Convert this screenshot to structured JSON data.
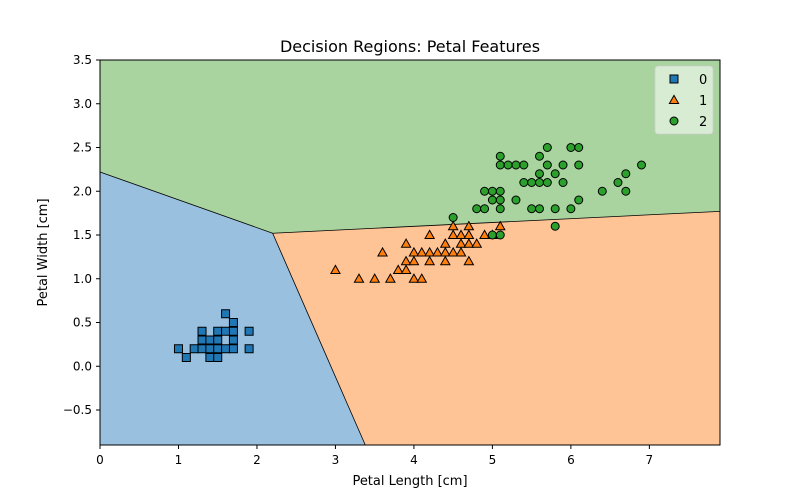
{
  "chart_data": {
    "type": "scatter",
    "title": "Decision Regions: Petal Features",
    "xlabel": "Petal Length [cm]",
    "ylabel": "Petal Width [cm]",
    "xlim": [
      0,
      7.9
    ],
    "ylim": [
      -0.9,
      3.5
    ],
    "xticks": [
      0,
      1,
      2,
      3,
      4,
      5,
      6,
      7
    ],
    "yticks": [
      -0.5,
      0.0,
      0.5,
      1.0,
      1.5,
      2.0,
      2.5,
      3.0,
      3.5
    ],
    "xtick_labels": [
      "0",
      "1",
      "2",
      "3",
      "4",
      "5",
      "6",
      "7"
    ],
    "ytick_labels": [
      "−0.5",
      "0.0",
      "0.5",
      "1.0",
      "1.5",
      "2.0",
      "2.5",
      "3.0",
      "3.5"
    ],
    "grid": false,
    "legend_position": "top-right",
    "regions": [
      {
        "class": "0",
        "color": "#99c0df",
        "polygon": [
          [
            0,
            2.22
          ],
          [
            2.2,
            1.52
          ],
          [
            3.38,
            -0.9
          ],
          [
            0,
            -0.9
          ]
        ]
      },
      {
        "class": "1",
        "color": "#ffc495",
        "polygon": [
          [
            2.2,
            1.52
          ],
          [
            7.9,
            1.77
          ],
          [
            7.9,
            -0.9
          ],
          [
            3.38,
            -0.9
          ]
        ]
      },
      {
        "class": "2",
        "color": "#a9d4a0",
        "polygon": [
          [
            0,
            3.5
          ],
          [
            7.9,
            3.5
          ],
          [
            7.9,
            1.77
          ],
          [
            2.2,
            1.52
          ],
          [
            0,
            2.22
          ]
        ]
      }
    ],
    "boundaries": [
      [
        [
          0,
          2.22
        ],
        [
          2.2,
          1.52
        ]
      ],
      [
        [
          2.2,
          1.52
        ],
        [
          3.38,
          -0.9
        ]
      ],
      [
        [
          2.2,
          1.52
        ],
        [
          7.9,
          1.77
        ]
      ]
    ],
    "series": [
      {
        "name": "0",
        "marker": "square",
        "color": "#1f77b4",
        "points": [
          [
            1.0,
            0.2
          ],
          [
            1.1,
            0.1
          ],
          [
            1.2,
            0.2
          ],
          [
            1.3,
            0.2
          ],
          [
            1.3,
            0.3
          ],
          [
            1.3,
            0.4
          ],
          [
            1.4,
            0.1
          ],
          [
            1.4,
            0.2
          ],
          [
            1.4,
            0.3
          ],
          [
            1.5,
            0.1
          ],
          [
            1.5,
            0.2
          ],
          [
            1.5,
            0.3
          ],
          [
            1.5,
            0.4
          ],
          [
            1.6,
            0.2
          ],
          [
            1.6,
            0.4
          ],
          [
            1.6,
            0.6
          ],
          [
            1.7,
            0.2
          ],
          [
            1.7,
            0.3
          ],
          [
            1.7,
            0.4
          ],
          [
            1.7,
            0.5
          ],
          [
            1.9,
            0.2
          ],
          [
            1.9,
            0.4
          ]
        ]
      },
      {
        "name": "1",
        "marker": "triangle",
        "color": "#ff7f0e",
        "points": [
          [
            3.0,
            1.1
          ],
          [
            3.3,
            1.0
          ],
          [
            3.5,
            1.0
          ],
          [
            3.6,
            1.3
          ],
          [
            3.7,
            1.0
          ],
          [
            3.8,
            1.1
          ],
          [
            3.9,
            1.1
          ],
          [
            3.9,
            1.2
          ],
          [
            3.9,
            1.4
          ],
          [
            4.0,
            1.0
          ],
          [
            4.0,
            1.2
          ],
          [
            4.0,
            1.3
          ],
          [
            4.1,
            1.0
          ],
          [
            4.1,
            1.3
          ],
          [
            4.2,
            1.2
          ],
          [
            4.2,
            1.3
          ],
          [
            4.2,
            1.5
          ],
          [
            4.3,
            1.3
          ],
          [
            4.4,
            1.2
          ],
          [
            4.4,
            1.3
          ],
          [
            4.4,
            1.4
          ],
          [
            4.5,
            1.3
          ],
          [
            4.5,
            1.5
          ],
          [
            4.5,
            1.6
          ],
          [
            4.6,
            1.3
          ],
          [
            4.6,
            1.4
          ],
          [
            4.6,
            1.5
          ],
          [
            4.7,
            1.2
          ],
          [
            4.7,
            1.4
          ],
          [
            4.7,
            1.5
          ],
          [
            4.7,
            1.6
          ],
          [
            4.8,
            1.4
          ],
          [
            4.9,
            1.5
          ],
          [
            5.0,
            1.5
          ],
          [
            5.1,
            1.6
          ]
        ]
      },
      {
        "name": "2",
        "marker": "circle",
        "color": "#2ca02c",
        "points": [
          [
            4.5,
            1.7
          ],
          [
            4.8,
            1.8
          ],
          [
            4.9,
            1.8
          ],
          [
            4.9,
            2.0
          ],
          [
            5.0,
            1.5
          ],
          [
            5.0,
            1.9
          ],
          [
            5.0,
            2.0
          ],
          [
            5.1,
            1.5
          ],
          [
            5.1,
            1.8
          ],
          [
            5.1,
            1.9
          ],
          [
            5.1,
            2.0
          ],
          [
            5.1,
            2.3
          ],
          [
            5.1,
            2.4
          ],
          [
            5.2,
            2.3
          ],
          [
            5.3,
            1.9
          ],
          [
            5.3,
            2.3
          ],
          [
            5.4,
            2.1
          ],
          [
            5.4,
            2.3
          ],
          [
            5.5,
            1.8
          ],
          [
            5.5,
            2.1
          ],
          [
            5.6,
            1.8
          ],
          [
            5.6,
            2.1
          ],
          [
            5.6,
            2.2
          ],
          [
            5.6,
            2.4
          ],
          [
            5.7,
            2.1
          ],
          [
            5.7,
            2.3
          ],
          [
            5.7,
            2.5
          ],
          [
            5.8,
            1.6
          ],
          [
            5.8,
            1.8
          ],
          [
            5.8,
            2.2
          ],
          [
            5.9,
            2.1
          ],
          [
            5.9,
            2.3
          ],
          [
            6.0,
            1.8
          ],
          [
            6.0,
            2.5
          ],
          [
            6.1,
            1.9
          ],
          [
            6.1,
            2.3
          ],
          [
            6.1,
            2.5
          ],
          [
            6.4,
            2.0
          ],
          [
            6.6,
            2.1
          ],
          [
            6.7,
            2.0
          ],
          [
            6.7,
            2.2
          ],
          [
            6.9,
            2.3
          ]
        ]
      }
    ]
  }
}
